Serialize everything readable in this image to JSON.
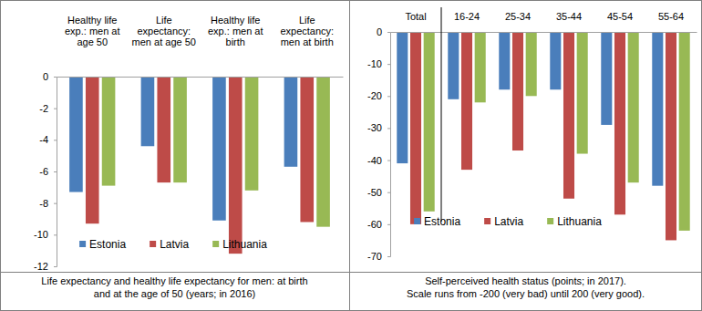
{
  "chart_data": [
    {
      "type": "bar",
      "title": [
        "Life expectancy and healthy life expectancy for men: at birth",
        "and at the age of 50 (years; in 2016)"
      ],
      "categories": [
        "Healthy life exp.: men at age 50",
        "Life expectancy: men at age 50",
        "Healthy life exp.: men at birth",
        "Life expectancy: men at birth"
      ],
      "series": [
        {
          "name": "Estonia",
          "color": "#4a7ebb",
          "values": [
            -7.3,
            -4.4,
            -9.1,
            -5.7
          ]
        },
        {
          "name": "Latvia",
          "color": "#be4b48",
          "values": [
            -9.3,
            -6.7,
            -11.2,
            -9.2
          ]
        },
        {
          "name": "Lithuania",
          "color": "#98b954",
          "values": [
            -6.9,
            -6.7,
            -7.2,
            -9.5
          ]
        }
      ],
      "ylim": [
        -12,
        0
      ],
      "yticks": [
        0,
        -2,
        -4,
        -6,
        -8,
        -10,
        -12
      ],
      "legend": "bottom",
      "grid": false
    },
    {
      "type": "bar",
      "title": [
        "Self-perceived health status (points; in 2017).",
        "Scale runs from -200 (very bad) until 200 (very good)."
      ],
      "categories": [
        "Total",
        "16-24",
        "25-34",
        "35-44",
        "45-54",
        "55-64"
      ],
      "series": [
        {
          "name": "Estonia",
          "color": "#4a7ebb",
          "values": [
            -41,
            -21,
            -18,
            -18,
            -29,
            -48
          ]
        },
        {
          "name": "Latvia",
          "color": "#be4b48",
          "values": [
            -60,
            -43,
            -37,
            -52,
            -57,
            -65
          ]
        },
        {
          "name": "Lithuania",
          "color": "#98b954",
          "values": [
            -56,
            -22,
            -20,
            -38,
            -47,
            -62
          ]
        }
      ],
      "ylim": [
        -70,
        0
      ],
      "yticks": [
        0,
        -10,
        -20,
        -30,
        -40,
        -50,
        -60,
        -70
      ],
      "legend": "bottom",
      "grid": false
    }
  ]
}
